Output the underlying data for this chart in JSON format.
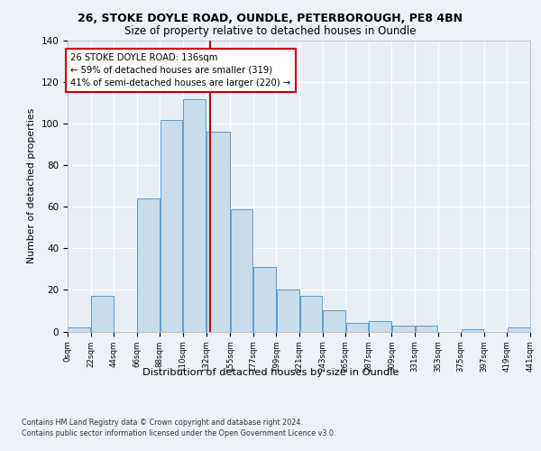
{
  "title1": "26, STOKE DOYLE ROAD, OUNDLE, PETERBOROUGH, PE8 4BN",
  "title2": "Size of property relative to detached houses in Oundle",
  "xlabel": "Distribution of detached houses by size in Oundle",
  "ylabel": "Number of detached properties",
  "bin_edges": [
    0,
    22,
    44,
    66,
    88,
    110,
    132,
    155,
    177,
    199,
    221,
    243,
    265,
    287,
    309,
    331,
    353,
    375,
    397,
    419,
    441
  ],
  "bar_heights": [
    2,
    17,
    0,
    64,
    102,
    112,
    96,
    59,
    31,
    20,
    17,
    10,
    4,
    5,
    3,
    3,
    0,
    1,
    0,
    2
  ],
  "bar_color": "#c9dcea",
  "bar_edge_color": "#5b9bd5",
  "property_size": 136,
  "vline_color": "#cc0000",
  "annotation_text": "26 STOKE DOYLE ROAD: 136sqm\n← 59% of detached houses are smaller (319)\n41% of semi-detached houses are larger (220) →",
  "annotation_box_color": "#ffffff",
  "annotation_border_color": "#cc0000",
  "footer1": "Contains HM Land Registry data © Crown copyright and database right 2024.",
  "footer2": "Contains public sector information licensed under the Open Government Licence v3.0.",
  "ylim": [
    0,
    140
  ],
  "background_color": "#eef2f8",
  "plot_background": "#e8eef6"
}
